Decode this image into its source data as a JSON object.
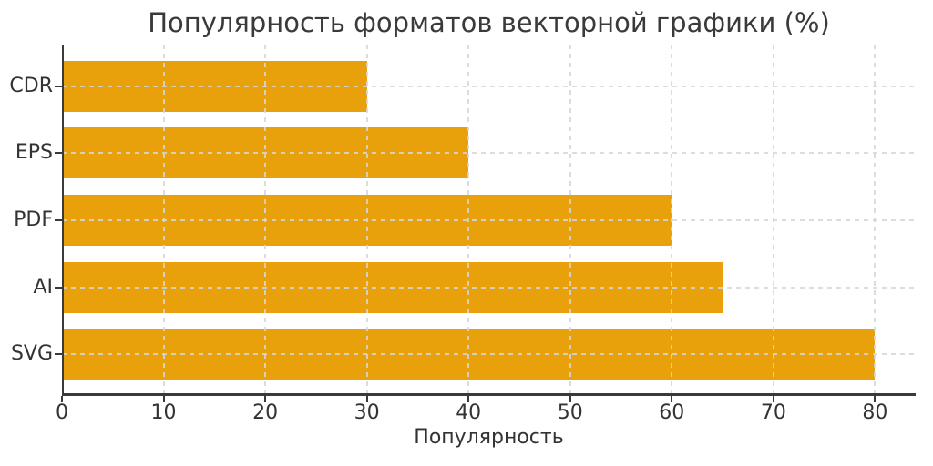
{
  "chart_data": {
    "type": "bar",
    "orientation": "horizontal",
    "title": "Популярность форматов векторной графики (%)",
    "xlabel": "Популярность",
    "ylabel": "",
    "categories": [
      "CDR",
      "EPS",
      "PDF",
      "AI",
      "SVG"
    ],
    "values": [
      30,
      40,
      60,
      65,
      80
    ],
    "xticks": [
      0,
      10,
      20,
      30,
      40,
      50,
      60,
      70,
      80
    ],
    "xlim": [
      0,
      84
    ],
    "grid": "dashed, both axes, drawn over bars",
    "legend": "none",
    "colors": {
      "bar": "#E8A10A",
      "axis": "#3A3A3A",
      "text": "#333333",
      "title": "#3A3A3A",
      "grid": "rgba(214,214,214,0.85)",
      "background": "#FFFFFF"
    }
  }
}
